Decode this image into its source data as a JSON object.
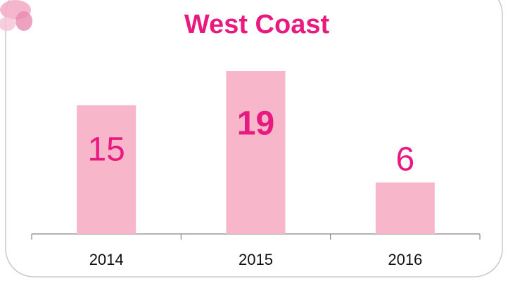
{
  "chart_data": {
    "type": "bar",
    "title": "West Coast",
    "categories": [
      "2014",
      "2015",
      "2016"
    ],
    "values": [
      15,
      19,
      6
    ],
    "color": "#f7b6c9",
    "label_color": "#e8197f"
  }
}
